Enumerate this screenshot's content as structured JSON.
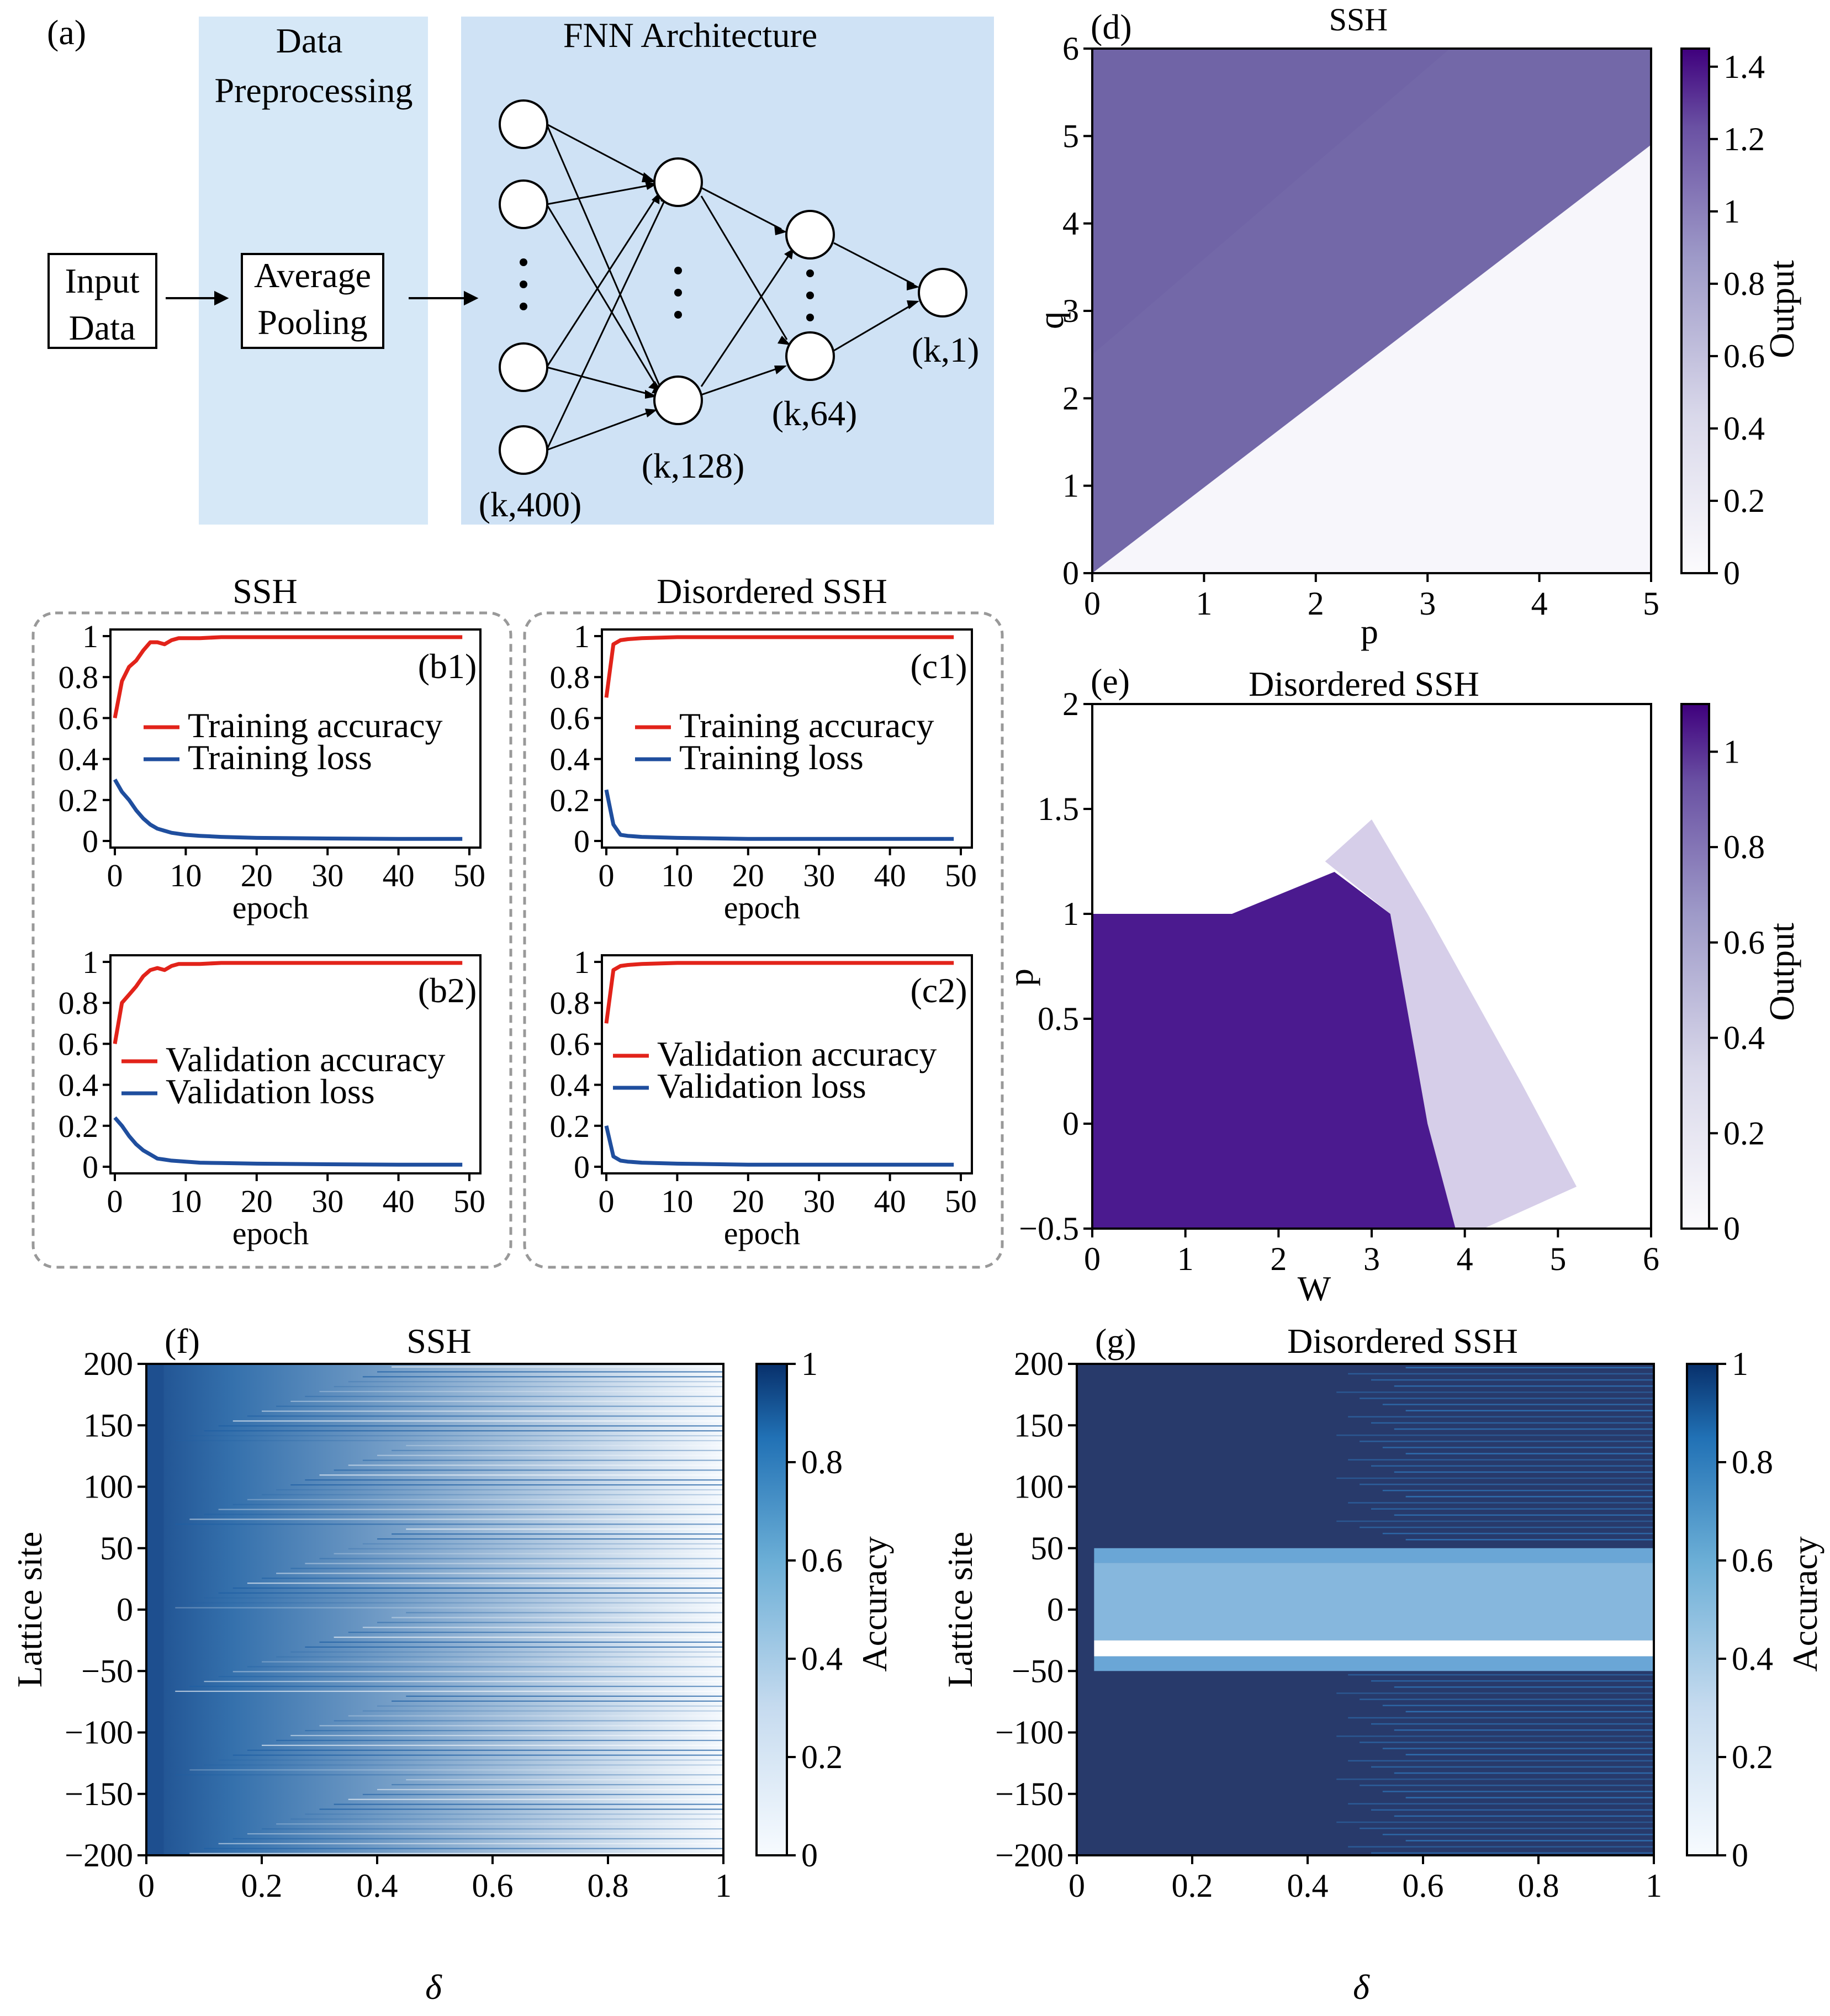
{
  "panel_a": {
    "label": "(a)",
    "preprocess_title_1": "Data",
    "preprocess_title_2": "Preprocessing",
    "fnn_title": "FNN Architecture",
    "input_label_1": "Input",
    "input_label_2": "Data",
    "pool_label_1": "Average",
    "pool_label_2": "Pooling",
    "layers": [
      "(k,400)",
      "(k,128)",
      "(k,64)",
      "(k,1)"
    ],
    "colors": {
      "preprocess_bg": "#d6e8f7",
      "fnn_bg": "#cfe2f5"
    }
  },
  "group_titles": {
    "ssh": "SSH",
    "disordered": "Disordered SSH"
  },
  "training_panels": [
    {
      "id": "b1",
      "label": "(b1)",
      "xlabel": "epoch",
      "xticks": [
        "0",
        "10",
        "20",
        "30",
        "40",
        "50"
      ],
      "yticks": [
        "0",
        "0.2",
        "0.4",
        "0.6",
        "0.8",
        "1"
      ],
      "legend": [
        "Training accuracy",
        "Training loss"
      ]
    },
    {
      "id": "c1",
      "label": "(c1)",
      "xlabel": "epoch",
      "xticks": [
        "0",
        "10",
        "20",
        "30",
        "40",
        "50"
      ],
      "yticks": [
        "0",
        "0.2",
        "0.4",
        "0.6",
        "0.8",
        "1"
      ],
      "legend": [
        "Training accuracy",
        "Training loss"
      ]
    },
    {
      "id": "b2",
      "label": "(b2)",
      "xlabel": "epoch",
      "xticks": [
        "0",
        "10",
        "20",
        "30",
        "40",
        "50"
      ],
      "yticks": [
        "0",
        "0.2",
        "0.4",
        "0.6",
        "0.8",
        "1"
      ],
      "legend": [
        "Validation accuracy",
        "Validation loss"
      ]
    },
    {
      "id": "c2",
      "label": "(c2)",
      "xlabel": "epoch",
      "xticks": [
        "0",
        "10",
        "20",
        "30",
        "40",
        "50"
      ],
      "yticks": [
        "0",
        "0.2",
        "0.4",
        "0.6",
        "0.8",
        "1"
      ],
      "legend": [
        "Validation accuracy",
        "Validation loss"
      ]
    }
  ],
  "panel_d": {
    "label": "(d)",
    "title": "SSH",
    "xlabel": "p",
    "ylabel": "q",
    "cbar_label": "Output",
    "xticks": [
      "0",
      "1",
      "2",
      "3",
      "4",
      "5"
    ],
    "yticks": [
      "0",
      "1",
      "2",
      "3",
      "4",
      "5",
      "6"
    ],
    "cbar_ticks": [
      "0",
      "0.2",
      "0.4",
      "0.6",
      "0.8",
      "1",
      "1.2",
      "1.4"
    ]
  },
  "panel_e": {
    "label": "(e)",
    "title": "Disordered SSH",
    "xlabel": "W",
    "ylabel": "p",
    "cbar_label": "Output",
    "xticks": [
      "0",
      "1",
      "2",
      "3",
      "4",
      "5",
      "6"
    ],
    "yticks": [
      "−0.5",
      "0",
      "0.5",
      "1",
      "1.5",
      "2"
    ],
    "cbar_ticks": [
      "0",
      "0.2",
      "0.4",
      "0.6",
      "0.8",
      "1"
    ]
  },
  "panel_f": {
    "label": "(f)",
    "title": "SSH",
    "xlabel": "δ",
    "ylabel": "Lattice site",
    "cbar_label": "Accuracy",
    "xticks": [
      "0",
      "0.2",
      "0.4",
      "0.6",
      "0.8",
      "1"
    ],
    "yticks": [
      "−200",
      "−150",
      "−100",
      "−50",
      "0",
      "50",
      "100",
      "150",
      "200"
    ],
    "cbar_ticks": [
      "0",
      "0.2",
      "0.4",
      "0.6",
      "0.8",
      "1"
    ]
  },
  "panel_g": {
    "label": "(g)",
    "title": "Disordered SSH",
    "xlabel": "δ",
    "ylabel": "Lattice site",
    "cbar_label": "Accuracy",
    "xticks": [
      "0",
      "0.2",
      "0.4",
      "0.6",
      "0.8",
      "1"
    ],
    "yticks": [
      "−200",
      "−150",
      "−100",
      "−50",
      "0",
      "50",
      "100",
      "150",
      "200"
    ],
    "cbar_ticks": [
      "0",
      "0.2",
      "0.4",
      "0.6",
      "0.8",
      "1"
    ]
  },
  "chart_data": [
    {
      "id": "b1",
      "type": "line",
      "xlim": [
        0,
        50
      ],
      "ylim": [
        0,
        1
      ],
      "series": [
        {
          "name": "Training accuracy",
          "color": "#e2231a",
          "x": [
            0,
            1,
            2,
            3,
            4,
            5,
            6,
            7,
            8,
            9,
            10,
            12,
            15,
            20,
            30,
            40,
            49
          ],
          "values": [
            0.6,
            0.78,
            0.85,
            0.88,
            0.93,
            0.97,
            0.97,
            0.96,
            0.98,
            0.99,
            0.99,
            0.99,
            0.995,
            0.995,
            0.995,
            0.995,
            0.995
          ]
        },
        {
          "name": "Training loss",
          "color": "#1f4e9e",
          "x": [
            0,
            1,
            2,
            3,
            4,
            5,
            6,
            7,
            8,
            10,
            12,
            15,
            20,
            30,
            40,
            49
          ],
          "values": [
            0.3,
            0.24,
            0.2,
            0.15,
            0.11,
            0.08,
            0.06,
            0.05,
            0.04,
            0.03,
            0.025,
            0.02,
            0.015,
            0.012,
            0.01,
            0.01
          ]
        }
      ]
    },
    {
      "id": "c1",
      "type": "line",
      "xlim": [
        0,
        50
      ],
      "ylim": [
        0,
        1
      ],
      "series": [
        {
          "name": "Training accuracy",
          "color": "#e2231a",
          "x": [
            0,
            1,
            2,
            3,
            5,
            10,
            20,
            30,
            40,
            49
          ],
          "values": [
            0.7,
            0.96,
            0.98,
            0.985,
            0.99,
            0.995,
            0.995,
            0.995,
            0.995,
            0.995
          ]
        },
        {
          "name": "Training loss",
          "color": "#1f4e9e",
          "x": [
            0,
            1,
            2,
            3,
            5,
            10,
            20,
            30,
            40,
            49
          ],
          "values": [
            0.25,
            0.08,
            0.03,
            0.025,
            0.02,
            0.015,
            0.01,
            0.01,
            0.01,
            0.01
          ]
        }
      ]
    },
    {
      "id": "b2",
      "type": "line",
      "xlim": [
        0,
        50
      ],
      "ylim": [
        0,
        1
      ],
      "series": [
        {
          "name": "Validation accuracy",
          "color": "#e2231a",
          "x": [
            0,
            1,
            2,
            3,
            4,
            5,
            6,
            7,
            8,
            9,
            10,
            12,
            15,
            20,
            30,
            40,
            49
          ],
          "values": [
            0.6,
            0.8,
            0.84,
            0.88,
            0.93,
            0.96,
            0.97,
            0.96,
            0.98,
            0.99,
            0.99,
            0.99,
            0.995,
            0.995,
            0.995,
            0.995,
            0.995
          ]
        },
        {
          "name": "Validation loss",
          "color": "#1f4e9e",
          "x": [
            0,
            1,
            2,
            3,
            4,
            5,
            6,
            7,
            8,
            10,
            12,
            15,
            20,
            30,
            40,
            49
          ],
          "values": [
            0.24,
            0.2,
            0.15,
            0.11,
            0.08,
            0.06,
            0.04,
            0.035,
            0.03,
            0.025,
            0.02,
            0.018,
            0.015,
            0.012,
            0.01,
            0.01
          ]
        }
      ]
    },
    {
      "id": "c2",
      "type": "line",
      "xlim": [
        0,
        50
      ],
      "ylim": [
        0,
        1
      ],
      "series": [
        {
          "name": "Validation accuracy",
          "color": "#e2231a",
          "x": [
            0,
            1,
            2,
            3,
            5,
            10,
            20,
            30,
            40,
            49
          ],
          "values": [
            0.7,
            0.96,
            0.98,
            0.985,
            0.99,
            0.995,
            0.995,
            0.995,
            0.995,
            0.995
          ]
        },
        {
          "name": "Validation loss",
          "color": "#1f4e9e",
          "x": [
            0,
            1,
            2,
            3,
            5,
            10,
            20,
            30,
            40,
            49
          ],
          "values": [
            0.2,
            0.05,
            0.03,
            0.025,
            0.02,
            0.015,
            0.01,
            0.01,
            0.01,
            0.01
          ]
        }
      ]
    },
    {
      "id": "d",
      "type": "heatmap",
      "xlim": [
        0,
        5
      ],
      "ylim": [
        0,
        6
      ],
      "clim": [
        0,
        1.45
      ],
      "colormap": "Purples",
      "high_color": "#7368a8",
      "low_color": "#f7f6fb",
      "boundary": {
        "x": [
          0,
          5
        ],
        "y": [
          0,
          4.9
        ],
        "upper_value": 0.95,
        "lower_value": 0.0
      }
    },
    {
      "id": "e",
      "type": "heatmap",
      "xlim": [
        0,
        6
      ],
      "ylim": [
        -0.5,
        2
      ],
      "clim": [
        0,
        1.1
      ],
      "colormap": "Purples",
      "high_color": "#4b1a8f",
      "low_color": "#ffffff",
      "region": {
        "p_max_low_W": 1.0,
        "W_edge_at_p0": 3.6,
        "W_edge_at_p1": 3.2,
        "W_fade_end": 4.6,
        "inner_value": 1.0
      }
    },
    {
      "id": "f",
      "type": "heatmap",
      "xlim": [
        0,
        1
      ],
      "ylim": [
        -200,
        200
      ],
      "clim": [
        0,
        1
      ],
      "colormap": "Blues",
      "dark_color": "#1e4f8f",
      "light_color": "#f3f8fd",
      "note": "horizontal stripes; accuracy near 1 at small δ, striped decrease toward δ=1"
    },
    {
      "id": "g",
      "type": "heatmap",
      "xlim": [
        0,
        1
      ],
      "ylim": [
        -200,
        200
      ],
      "clim": [
        0,
        1
      ],
      "colormap": "Blues",
      "dark_color": "#283a6b",
      "mid_color": "#6aa6d6",
      "light_color": "#ffffff",
      "bands": [
        {
          "from": -50,
          "to": -38,
          "value": 0.55
        },
        {
          "from": -38,
          "to": -25,
          "value": 0.05
        },
        {
          "from": -25,
          "to": 38,
          "value": 0.5
        },
        {
          "from": 38,
          "to": 50,
          "value": 0.55
        }
      ],
      "outer_value": 1.0
    }
  ]
}
